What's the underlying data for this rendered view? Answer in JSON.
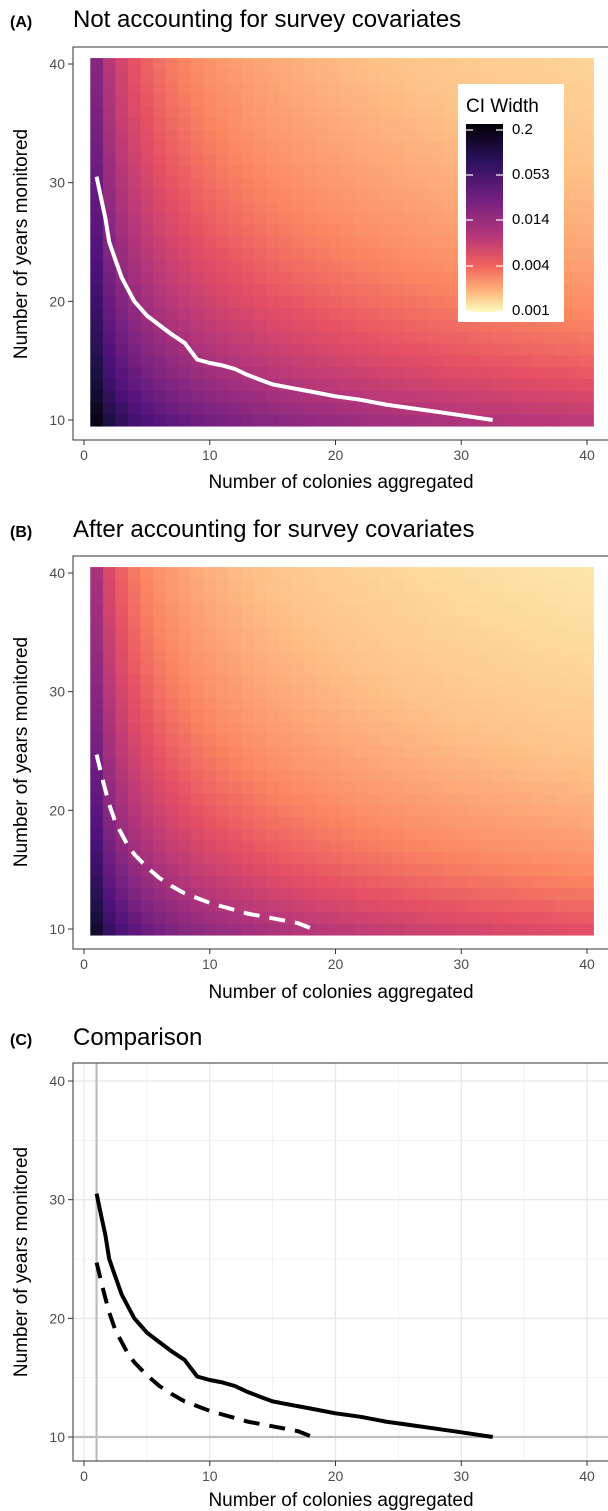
{
  "chart_data": [
    {
      "tag": "(A)",
      "type": "heatmap",
      "title": "Not accounting for survey covariates",
      "xlabel": "Number of colonies aggregated",
      "ylabel": "Number of years monitored",
      "xlim": [
        0,
        40
      ],
      "ylim": [
        10,
        40
      ],
      "xticks": [
        "0",
        "10",
        "20",
        "30",
        "40"
      ],
      "yticks": [
        "10",
        "20",
        "30",
        "40"
      ],
      "grid": false,
      "legend": {
        "title": "CI Width",
        "position": "top-right",
        "labels": [
          "0.2",
          "0.053",
          "0.014",
          "0.004",
          "0.001"
        ]
      },
      "surface": {
        "color_corner_low": "#050417",
        "color_corner_high": "#f88c66",
        "log_scale": true
      },
      "series": [
        {
          "style": "solid",
          "color": "#ffffff",
          "x": [
            1,
            1.3,
            1.7,
            2,
            2.5,
            3,
            3.5,
            4,
            5,
            6,
            7,
            8,
            9,
            10,
            11,
            12,
            13,
            14,
            15,
            16,
            18,
            20,
            22,
            24,
            26,
            28,
            30,
            32.5
          ],
          "y": [
            30.5,
            29,
            27,
            25,
            23.5,
            22,
            21,
            20,
            18.8,
            18,
            17.2,
            16.5,
            15.1,
            14.8,
            14.6,
            14.3,
            13.8,
            13.4,
            13,
            12.8,
            12.4,
            12,
            11.7,
            11.3,
            11,
            10.7,
            10.4,
            10
          ]
        }
      ]
    },
    {
      "tag": "(B)",
      "type": "heatmap",
      "title": "After accounting for survey covariates",
      "xlabel": "Number of colonies aggregated",
      "ylabel": "Number of years monitored",
      "xlim": [
        0,
        40
      ],
      "ylim": [
        10,
        40
      ],
      "xticks": [
        "0",
        "10",
        "20",
        "30",
        "40"
      ],
      "yticks": [
        "10",
        "20",
        "30",
        "40"
      ],
      "grid": false,
      "surface": {
        "color_corner_low": "#0d0829",
        "color_corner_high": "#fca26e",
        "log_scale": true
      },
      "series": [
        {
          "style": "dashed",
          "color": "#ffffff",
          "x": [
            1,
            1.5,
            2,
            2.5,
            3,
            3.5,
            4,
            5,
            6,
            7,
            8,
            9,
            10,
            11,
            12,
            13,
            14,
            15,
            16,
            17,
            18.2
          ],
          "y": [
            24.7,
            22.5,
            20.5,
            19,
            18,
            17,
            16.3,
            15.2,
            14.3,
            13.6,
            13,
            12.6,
            12.2,
            11.9,
            11.6,
            11.3,
            11.1,
            10.9,
            10.7,
            10.5,
            10
          ]
        }
      ]
    },
    {
      "tag": "(C)",
      "type": "line",
      "title": "Comparison",
      "xlabel": "Number of colonies aggregated",
      "ylabel": "Number of years monitored",
      "xlim": [
        0,
        40
      ],
      "ylim": [
        10,
        40
      ],
      "xticks": [
        "0",
        "10",
        "20",
        "30",
        "40"
      ],
      "yticks": [
        "10",
        "20",
        "30",
        "40"
      ],
      "grid": true,
      "reference_lines": {
        "vertical_x": 1,
        "horizontal_y": 10,
        "color": "#bebebe"
      },
      "series": [
        {
          "style": "solid",
          "color": "#000000",
          "x": [
            1,
            1.3,
            1.7,
            2,
            2.5,
            3,
            3.5,
            4,
            5,
            6,
            7,
            8,
            9,
            10,
            11,
            12,
            13,
            14,
            15,
            16,
            18,
            20,
            22,
            24,
            26,
            28,
            30,
            32.5
          ],
          "y": [
            30.5,
            29,
            27,
            25,
            23.5,
            22,
            21,
            20,
            18.8,
            18,
            17.2,
            16.5,
            15.1,
            14.8,
            14.6,
            14.3,
            13.8,
            13.4,
            13,
            12.8,
            12.4,
            12,
            11.7,
            11.3,
            11,
            10.7,
            10.4,
            10
          ]
        },
        {
          "style": "dashed",
          "color": "#000000",
          "x": [
            1,
            1.5,
            2,
            2.5,
            3,
            3.5,
            4,
            5,
            6,
            7,
            8,
            9,
            10,
            11,
            12,
            13,
            14,
            15,
            16,
            17,
            18.2
          ],
          "y": [
            24.7,
            22.5,
            20.5,
            19,
            18,
            17,
            16.3,
            15.2,
            14.3,
            13.6,
            13,
            12.6,
            12.2,
            11.9,
            11.6,
            11.3,
            11.1,
            10.9,
            10.7,
            10.5,
            10
          ]
        }
      ]
    }
  ]
}
